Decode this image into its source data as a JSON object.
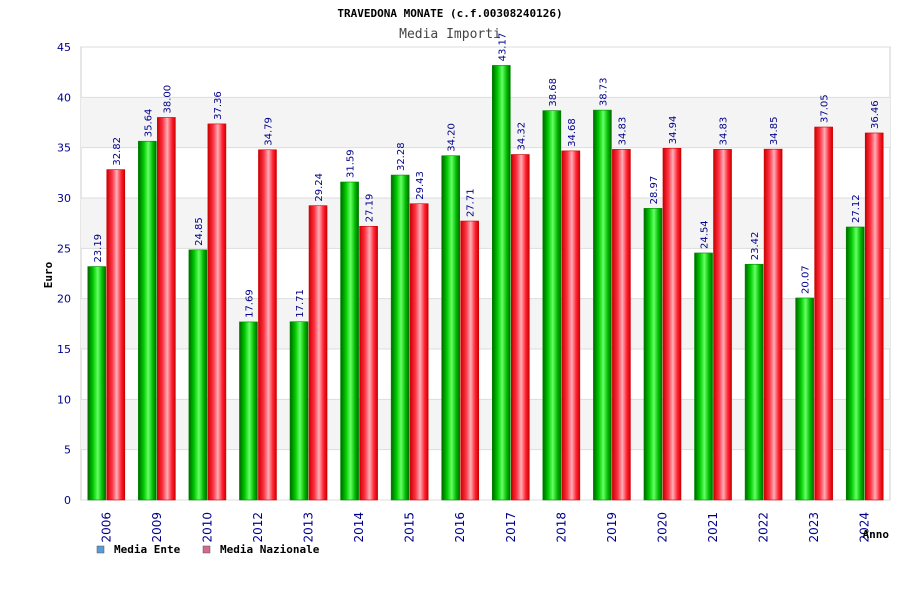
{
  "chart_data": {
    "type": "bar",
    "title": "TRAVEDONA MONATE (c.f.00308240126)",
    "subtitle": "Media Importi",
    "xlabel": "Anno",
    "ylabel": "Euro",
    "ylim": [
      0,
      45
    ],
    "yticks": [
      0,
      5,
      10,
      15,
      20,
      25,
      30,
      35,
      40,
      45
    ],
    "ytick_labels": [
      "0",
      "5",
      "10",
      "15",
      "20",
      "25",
      "30",
      "35",
      "40",
      "45"
    ],
    "grid": true,
    "legend_position": "bottom-left",
    "categories": [
      "2006",
      "2009",
      "2010",
      "2012",
      "2013",
      "2014",
      "2015",
      "2016",
      "2017",
      "2018",
      "2019",
      "2020",
      "2021",
      "2022",
      "2023",
      "2024"
    ],
    "series": [
      {
        "name": "Media Ente",
        "color": "#00aa00",
        "legend_color": "#5b9bd5",
        "values": [
          23.19,
          35.64,
          24.85,
          17.69,
          17.71,
          31.59,
          32.28,
          34.2,
          43.17,
          38.68,
          38.73,
          28.97,
          24.54,
          23.42,
          20.07,
          27.12
        ],
        "labels": [
          "23.19",
          "35.64",
          "24.85",
          "17.69",
          "17.71",
          "31.59",
          "32.28",
          "34.20",
          "43.17",
          "38.68",
          "38.73",
          "28.97",
          "24.54",
          "23.42",
          "20.07",
          "27.12"
        ]
      },
      {
        "name": "Media Nazionale",
        "color": "#e8000a",
        "legend_color": "#d46a8c",
        "values": [
          32.82,
          38.0,
          37.36,
          34.79,
          29.24,
          27.19,
          29.43,
          27.71,
          34.32,
          34.68,
          34.83,
          34.94,
          34.83,
          34.85,
          37.05,
          36.46
        ],
        "labels": [
          "32.82",
          "38.00",
          "37.36",
          "34.79",
          "29.24",
          "27.19",
          "29.43",
          "27.71",
          "34.32",
          "34.68",
          "34.83",
          "34.94",
          "34.83",
          "34.85",
          "37.05",
          "36.46"
        ]
      }
    ]
  }
}
